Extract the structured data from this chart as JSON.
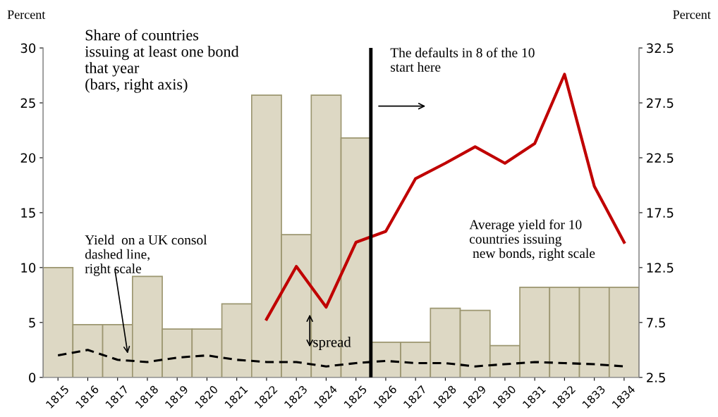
{
  "chart_data": {
    "type": "bar",
    "ylabel": "Percent",
    "y2label": "Percent",
    "x": [
      1815,
      1816,
      1817,
      1818,
      1819,
      1820,
      1821,
      1822,
      1823,
      1824,
      1825,
      1826,
      1827,
      1828,
      1829,
      1830,
      1831,
      1832,
      1833,
      1834
    ],
    "xlim": [
      1814.5,
      1834.5
    ],
    "xticks": [
      1815,
      1816,
      1817,
      1818,
      1819,
      1820,
      1821,
      1822,
      1823,
      1824,
      1825,
      1826,
      1827,
      1828,
      1829,
      1830,
      1831,
      1832,
      1833,
      1834
    ],
    "ylim": [
      0,
      30
    ],
    "yticks": [
      0,
      5,
      10,
      15,
      20,
      25,
      30
    ],
    "y2lim": [
      2.5,
      32.5
    ],
    "y2ticks": [
      2.5,
      7.5,
      12.5,
      17.5,
      22.5,
      27.5,
      32.5
    ],
    "series": [
      {
        "color": "#ddd8c4",
        "values": [
          10,
          4.8,
          4.8,
          9.2,
          4.4,
          4.4,
          6.7,
          25.7,
          13.0,
          25.7,
          21.8,
          3.2,
          3.2,
          6.3,
          6.1,
          2.9,
          8.2,
          8.2,
          8.2,
          8.2
        ]
      },
      {
        "type": "line",
        "axis": "y2",
        "color": "#c00000",
        "line_style": "solid",
        "values": [
          null,
          null,
          null,
          null,
          null,
          null,
          null,
          7.8,
          12.6,
          8.9,
          14.8,
          15.8,
          20.6,
          22.0,
          23.5,
          22.0,
          23.8,
          30.1,
          19.9,
          14.8
        ]
      },
      {
        "type": "line",
        "axis": "y2",
        "color": "#000000",
        "line_style": "dashed",
        "values": [
          4.5,
          5.0,
          4.1,
          3.9,
          4.3,
          4.5,
          4.1,
          3.9,
          3.9,
          3.5,
          3.8,
          4.0,
          3.8,
          3.8,
          3.5,
          3.7,
          3.9,
          3.8,
          3.7,
          3.5
        ]
      }
    ],
    "ref_lines": [
      {
        "axis": "x",
        "value": 1825.5,
        "color": "#000000"
      }
    ],
    "annotations": [
      "Share of countries\nissuing at least one bond\nthat year\n(bars, right axis)",
      "Yield  on a UK consol\ndashed line,\nright scale",
      "spread",
      "The defaults in 8 of the 10\nstart here",
      "Average yield for 10\ncountries issuing\n new bonds, right scale"
    ],
    "grid": false,
    "legend": false
  }
}
